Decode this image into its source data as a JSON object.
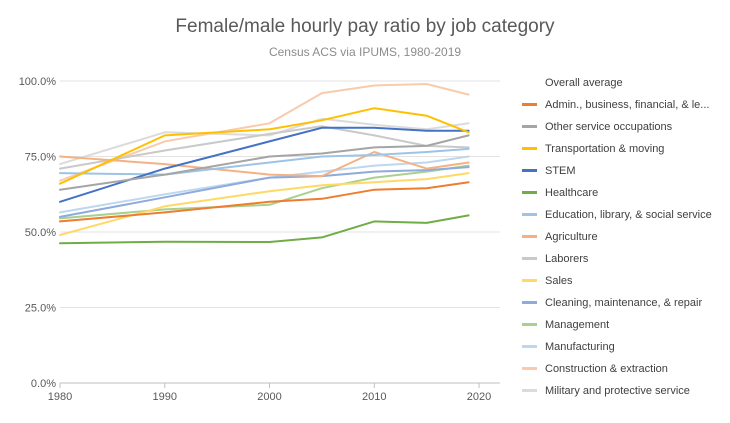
{
  "chart_data": {
    "type": "line",
    "title": "Female/male hourly pay ratio by job category",
    "subtitle": "Census ACS via IPUMS, 1980-2019",
    "xlabel": "",
    "ylabel": "",
    "xlim": [
      1980,
      2022
    ],
    "ylim": [
      0,
      1
    ],
    "x_ticks": [
      "1980",
      "1990",
      "2000",
      "2010",
      "2020"
    ],
    "y_ticks": [
      "0.0%",
      "25.0%",
      "50.0%",
      "75.0%",
      "100.0%"
    ],
    "grid": "horizontal",
    "legend_position": "right",
    "x": [
      1980,
      1990,
      2000,
      2005,
      2010,
      2015,
      2019
    ],
    "series": [
      {
        "name": "Overall average",
        "color": "#ffffff",
        "values": [
          null,
          null,
          null,
          null,
          null,
          null,
          null
        ]
      },
      {
        "name": "Admin., business, financial, & le...",
        "color": "#ed7d31",
        "values": [
          0.535,
          0.565,
          0.6,
          0.61,
          0.64,
          0.645,
          0.665
        ]
      },
      {
        "name": "Other service occupations",
        "color": "#a5a5a5",
        "values": [
          0.64,
          0.69,
          0.75,
          0.76,
          0.78,
          0.785,
          0.82
        ]
      },
      {
        "name": "Transportation & moving",
        "color": "#ffc000",
        "values": [
          0.66,
          0.82,
          0.84,
          0.87,
          0.91,
          0.885,
          0.83
        ]
      },
      {
        "name": "STEM",
        "color": "#4472c4",
        "values": [
          0.6,
          0.71,
          0.8,
          0.845,
          0.845,
          0.835,
          0.835
        ]
      },
      {
        "name": "Healthcare",
        "color": "#70ad47",
        "values": [
          0.463,
          0.468,
          0.467,
          0.482,
          0.535,
          0.53,
          0.555
        ]
      },
      {
        "name": "Education, library, & social service",
        "color": "#9dc3e6",
        "values": [
          0.695,
          0.69,
          0.73,
          0.75,
          0.755,
          0.765,
          0.775
        ]
      },
      {
        "name": "Agriculture",
        "color": "#f4b183",
        "values": [
          0.75,
          0.725,
          0.69,
          0.685,
          0.765,
          0.71,
          0.73
        ]
      },
      {
        "name": "Laborers",
        "color": "#c9c9c9",
        "values": [
          0.71,
          0.77,
          0.825,
          0.85,
          0.82,
          0.785,
          0.78
        ]
      },
      {
        "name": "Sales",
        "color": "#ffd966",
        "values": [
          0.49,
          0.585,
          0.635,
          0.655,
          0.665,
          0.675,
          0.695
        ]
      },
      {
        "name": "Cleaning, maintenance, & repair",
        "color": "#8faadc",
        "values": [
          0.55,
          0.615,
          0.68,
          0.685,
          0.7,
          0.705,
          0.715
        ]
      },
      {
        "name": "Management",
        "color": "#a9d18e",
        "values": [
          0.545,
          0.575,
          0.59,
          0.645,
          0.68,
          0.7,
          0.72
        ]
      },
      {
        "name": "Manufacturing",
        "color": "#bdd7ee",
        "values": [
          0.565,
          0.625,
          0.68,
          0.7,
          0.72,
          0.73,
          0.75
        ]
      },
      {
        "name": "Construction & extraction",
        "color": "#f8cbad",
        "values": [
          0.67,
          0.8,
          0.86,
          0.96,
          0.985,
          0.99,
          0.955
        ]
      },
      {
        "name": "Military and protective service",
        "color": "#dbdbdb",
        "values": [
          0.725,
          0.83,
          0.82,
          0.875,
          0.855,
          0.84,
          0.86
        ]
      }
    ]
  }
}
